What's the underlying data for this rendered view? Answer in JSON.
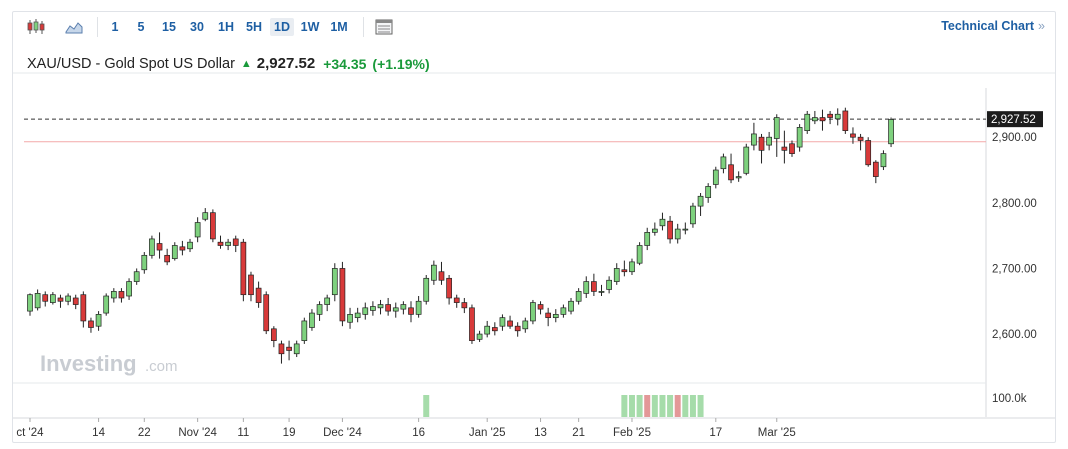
{
  "toolbar": {
    "timeframes": [
      "1",
      "5",
      "15",
      "30",
      "1H",
      "5H",
      "1D",
      "1W",
      "1M"
    ],
    "active": "1D",
    "technical_link": "Technical Chart",
    "technical_chevron": "»"
  },
  "header": {
    "symbol": "XAU/USD - Gold Spot US Dollar",
    "price": "2,927.52",
    "change": "+34.35",
    "change_pct": "(+1.19%)"
  },
  "watermark": {
    "brand": "Investing",
    "suffix": ".com"
  },
  "colors": {
    "up": "#7ed17e",
    "down": "#d83a3a",
    "accent": "#1e5fa3"
  },
  "chart_data": {
    "type": "candlestick",
    "ylim": [
      2530,
      2975
    ],
    "yticks": [
      2600,
      2700,
      2800,
      2900
    ],
    "ytick_labels": [
      "2,600.00",
      "2,700.00",
      "2,800.00",
      "2,900.00"
    ],
    "last_price": 2927.52,
    "last_price_label": "2,927.52",
    "reference_line": 2893,
    "volume_label": "100.0k",
    "xtick_labels": [
      {
        "label": "ct '24",
        "index": 0
      },
      {
        "label": "14",
        "index": 9
      },
      {
        "label": "22",
        "index": 15
      },
      {
        "label": "Nov '24",
        "index": 22
      },
      {
        "label": "11",
        "index": 28
      },
      {
        "label": "19",
        "index": 34
      },
      {
        "label": "Dec '24",
        "index": 41
      },
      {
        "label": "16",
        "index": 51
      },
      {
        "label": "Jan '25",
        "index": 60
      },
      {
        "label": "13",
        "index": 67
      },
      {
        "label": "21",
        "index": 72
      },
      {
        "label": "Feb '25",
        "index": 79
      },
      {
        "label": "17",
        "index": 90
      },
      {
        "label": "Mar '25",
        "index": 98
      }
    ],
    "candles": [
      [
        2635,
        2660,
        2628,
        2662
      ],
      [
        2640,
        2662,
        2636,
        2668
      ],
      [
        2660,
        2650,
        2642,
        2665
      ],
      [
        2648,
        2660,
        2645,
        2664
      ],
      [
        2655,
        2650,
        2640,
        2660
      ],
      [
        2650,
        2658,
        2644,
        2662
      ],
      [
        2655,
        2645,
        2638,
        2660
      ],
      [
        2660,
        2620,
        2610,
        2665
      ],
      [
        2620,
        2610,
        2602,
        2625
      ],
      [
        2612,
        2630,
        2605,
        2635
      ],
      [
        2632,
        2658,
        2628,
        2662
      ],
      [
        2655,
        2665,
        2648,
        2670
      ],
      [
        2665,
        2655,
        2648,
        2670
      ],
      [
        2658,
        2680,
        2652,
        2685
      ],
      [
        2680,
        2695,
        2675,
        2700
      ],
      [
        2698,
        2720,
        2692,
        2725
      ],
      [
        2720,
        2745,
        2715,
        2750
      ],
      [
        2738,
        2728,
        2715,
        2755
      ],
      [
        2720,
        2710,
        2705,
        2730
      ],
      [
        2715,
        2735,
        2712,
        2740
      ],
      [
        2733,
        2728,
        2720,
        2742
      ],
      [
        2730,
        2740,
        2725,
        2745
      ],
      [
        2748,
        2770,
        2740,
        2778
      ],
      [
        2775,
        2785,
        2772,
        2792
      ],
      [
        2785,
        2745,
        2740,
        2790
      ],
      [
        2740,
        2735,
        2730,
        2750
      ],
      [
        2735,
        2740,
        2728,
        2745
      ],
      [
        2745,
        2735,
        2725,
        2750
      ],
      [
        2740,
        2660,
        2650,
        2745
      ],
      [
        2690,
        2660,
        2650,
        2695
      ],
      [
        2670,
        2648,
        2640,
        2680
      ],
      [
        2660,
        2605,
        2600,
        2665
      ],
      [
        2608,
        2590,
        2580,
        2612
      ],
      [
        2585,
        2570,
        2555,
        2590
      ],
      [
        2580,
        2575,
        2560,
        2590
      ],
      [
        2570,
        2585,
        2565,
        2590
      ],
      [
        2590,
        2620,
        2585,
        2625
      ],
      [
        2610,
        2632,
        2605,
        2638
      ],
      [
        2630,
        2645,
        2620,
        2650
      ],
      [
        2645,
        2655,
        2635,
        2660
      ],
      [
        2660,
        2700,
        2650,
        2708
      ],
      [
        2700,
        2620,
        2612,
        2710
      ],
      [
        2618,
        2630,
        2608,
        2640
      ],
      [
        2625,
        2632,
        2618,
        2640
      ],
      [
        2630,
        2640,
        2622,
        2648
      ],
      [
        2636,
        2642,
        2628,
        2650
      ],
      [
        2640,
        2645,
        2630,
        2652
      ],
      [
        2645,
        2635,
        2628,
        2655
      ],
      [
        2635,
        2640,
        2625,
        2648
      ],
      [
        2638,
        2645,
        2630,
        2650
      ],
      [
        2640,
        2630,
        2618,
        2650
      ],
      [
        2630,
        2650,
        2625,
        2658
      ],
      [
        2650,
        2685,
        2645,
        2690
      ],
      [
        2682,
        2705,
        2675,
        2712
      ],
      [
        2695,
        2682,
        2675,
        2710
      ],
      [
        2685,
        2655,
        2645,
        2690
      ],
      [
        2655,
        2648,
        2640,
        2660
      ],
      [
        2648,
        2640,
        2632,
        2655
      ],
      [
        2640,
        2590,
        2585,
        2645
      ],
      [
        2592,
        2600,
        2588,
        2605
      ],
      [
        2600,
        2612,
        2595,
        2620
      ],
      [
        2610,
        2605,
        2598,
        2618
      ],
      [
        2612,
        2625,
        2605,
        2630
      ],
      [
        2620,
        2612,
        2608,
        2628
      ],
      [
        2612,
        2605,
        2596,
        2618
      ],
      [
        2608,
        2620,
        2602,
        2625
      ],
      [
        2620,
        2648,
        2615,
        2652
      ],
      [
        2645,
        2638,
        2630,
        2650
      ],
      [
        2632,
        2625,
        2612,
        2640
      ],
      [
        2625,
        2630,
        2618,
        2638
      ],
      [
        2630,
        2640,
        2625,
        2645
      ],
      [
        2635,
        2650,
        2630,
        2655
      ],
      [
        2650,
        2665,
        2645,
        2670
      ],
      [
        2662,
        2680,
        2655,
        2688
      ],
      [
        2680,
        2665,
        2658,
        2692
      ],
      [
        2665,
        2665,
        2658,
        2675
      ],
      [
        2668,
        2682,
        2662,
        2688
      ],
      [
        2680,
        2700,
        2675,
        2708
      ],
      [
        2698,
        2695,
        2688,
        2712
      ],
      [
        2695,
        2710,
        2690,
        2715
      ],
      [
        2708,
        2735,
        2705,
        2740
      ],
      [
        2735,
        2755,
        2728,
        2762
      ],
      [
        2755,
        2760,
        2750,
        2770
      ],
      [
        2765,
        2775,
        2758,
        2785
      ],
      [
        2772,
        2745,
        2738,
        2780
      ],
      [
        2745,
        2760,
        2738,
        2768
      ],
      [
        2760,
        2760,
        2752,
        2770
      ],
      [
        2768,
        2795,
        2762,
        2800
      ],
      [
        2795,
        2810,
        2780,
        2815
      ],
      [
        2808,
        2825,
        2800,
        2830
      ],
      [
        2828,
        2850,
        2822,
        2855
      ],
      [
        2852,
        2870,
        2845,
        2875
      ],
      [
        2858,
        2835,
        2830,
        2875
      ],
      [
        2838,
        2840,
        2832,
        2848
      ],
      [
        2845,
        2885,
        2842,
        2890
      ],
      [
        2888,
        2905,
        2880,
        2922
      ],
      [
        2900,
        2880,
        2860,
        2905
      ],
      [
        2888,
        2900,
        2880,
        2908
      ],
      [
        2898,
        2930,
        2870,
        2935
      ],
      [
        2885,
        2880,
        2860,
        2910
      ],
      [
        2890,
        2875,
        2870,
        2895
      ],
      [
        2885,
        2915,
        2878,
        2920
      ],
      [
        2910,
        2935,
        2905,
        2940
      ],
      [
        2925,
        2930,
        2920,
        2940
      ],
      [
        2930,
        2925,
        2910,
        2942
      ],
      [
        2935,
        2930,
        2920,
        2940
      ],
      [
        2928,
        2935,
        2918,
        2944
      ],
      [
        2940,
        2910,
        2905,
        2945
      ],
      [
        2905,
        2900,
        2890,
        2915
      ],
      [
        2900,
        2895,
        2880,
        2905
      ],
      [
        2895,
        2858,
        2855,
        2900
      ],
      [
        2862,
        2840,
        2830,
        2865
      ],
      [
        2855,
        2875,
        2850,
        2880
      ],
      [
        2890,
        2927,
        2885,
        2930
      ]
    ],
    "volume_bars": [
      {
        "index": 52,
        "dir": "up",
        "h": 1
      },
      {
        "index": 78,
        "dir": "up",
        "h": 1
      },
      {
        "index": 79,
        "dir": "up",
        "h": 1
      },
      {
        "index": 80,
        "dir": "up",
        "h": 1
      },
      {
        "index": 81,
        "dir": "down",
        "h": 1
      },
      {
        "index": 82,
        "dir": "up",
        "h": 1
      },
      {
        "index": 83,
        "dir": "up",
        "h": 1
      },
      {
        "index": 84,
        "dir": "up",
        "h": 1
      },
      {
        "index": 85,
        "dir": "down",
        "h": 1
      },
      {
        "index": 86,
        "dir": "up",
        "h": 1
      },
      {
        "index": 87,
        "dir": "up",
        "h": 1
      },
      {
        "index": 88,
        "dir": "up",
        "h": 1
      }
    ]
  }
}
